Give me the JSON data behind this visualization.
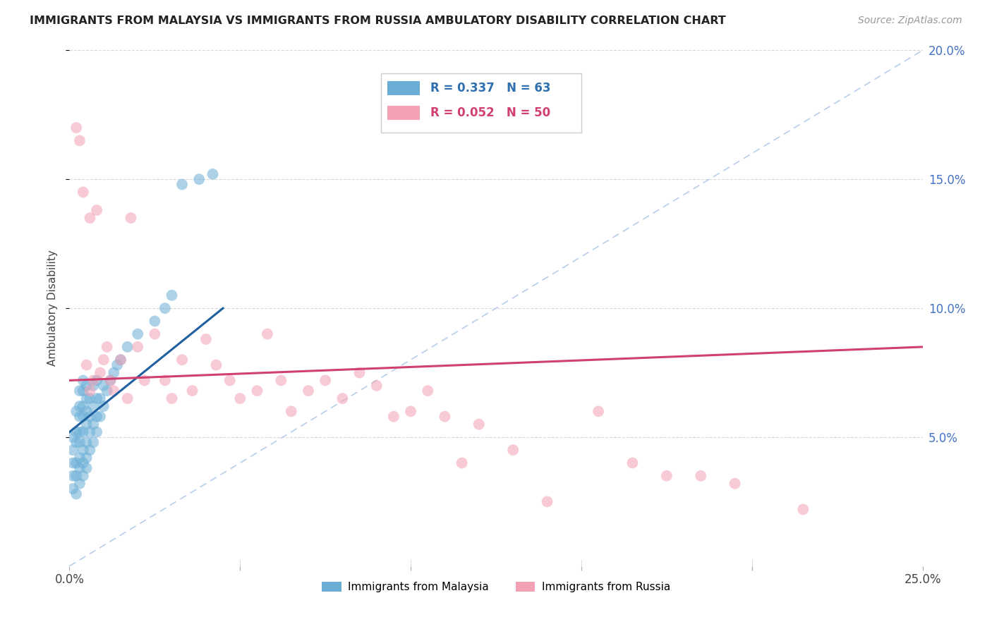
{
  "title": "IMMIGRANTS FROM MALAYSIA VS IMMIGRANTS FROM RUSSIA AMBULATORY DISABILITY CORRELATION CHART",
  "source": "Source: ZipAtlas.com",
  "ylabel": "Ambulatory Disability",
  "x_min": 0.0,
  "x_max": 0.25,
  "y_min": 0.0,
  "y_max": 0.2,
  "legend_label1": "Immigrants from Malaysia",
  "legend_label2": "Immigrants from Russia",
  "color_malaysia": "#6aaed6",
  "color_russia": "#f4a0b5",
  "color_trend_malaysia": "#2060a0",
  "color_trend_russia": "#d04070",
  "color_diag": "#b0c8e8",
  "background_color": "#ffffff",
  "grid_color": "#d8d8d8",
  "malaysia_x": [
    0.001,
    0.001,
    0.001,
    0.001,
    0.001,
    0.002,
    0.002,
    0.002,
    0.002,
    0.002,
    0.002,
    0.003,
    0.003,
    0.003,
    0.003,
    0.003,
    0.003,
    0.003,
    0.003,
    0.004,
    0.004,
    0.004,
    0.004,
    0.004,
    0.004,
    0.004,
    0.004,
    0.005,
    0.005,
    0.005,
    0.005,
    0.005,
    0.005,
    0.005,
    0.006,
    0.006,
    0.006,
    0.006,
    0.007,
    0.007,
    0.007,
    0.007,
    0.008,
    0.008,
    0.008,
    0.008,
    0.009,
    0.009,
    0.01,
    0.01,
    0.011,
    0.012,
    0.013,
    0.014,
    0.015,
    0.017,
    0.02,
    0.025,
    0.028,
    0.03,
    0.033,
    0.038,
    0.042
  ],
  "malaysia_y": [
    0.03,
    0.035,
    0.04,
    0.045,
    0.05,
    0.028,
    0.035,
    0.04,
    0.048,
    0.052,
    0.06,
    0.032,
    0.038,
    0.042,
    0.048,
    0.052,
    0.058,
    0.062,
    0.068,
    0.035,
    0.04,
    0.045,
    0.052,
    0.058,
    0.062,
    0.068,
    0.072,
    0.038,
    0.042,
    0.048,
    0.055,
    0.06,
    0.065,
    0.07,
    0.045,
    0.052,
    0.058,
    0.065,
    0.048,
    0.055,
    0.062,
    0.07,
    0.052,
    0.058,
    0.065,
    0.072,
    0.058,
    0.065,
    0.062,
    0.07,
    0.068,
    0.072,
    0.075,
    0.078,
    0.08,
    0.085,
    0.09,
    0.095,
    0.1,
    0.105,
    0.148,
    0.15,
    0.152
  ],
  "russia_x": [
    0.002,
    0.003,
    0.004,
    0.005,
    0.006,
    0.006,
    0.007,
    0.008,
    0.009,
    0.01,
    0.011,
    0.012,
    0.013,
    0.015,
    0.017,
    0.018,
    0.02,
    0.022,
    0.025,
    0.028,
    0.03,
    0.033,
    0.036,
    0.04,
    0.043,
    0.047,
    0.05,
    0.055,
    0.058,
    0.062,
    0.065,
    0.07,
    0.075,
    0.08,
    0.085,
    0.09,
    0.095,
    0.1,
    0.105,
    0.11,
    0.115,
    0.12,
    0.13,
    0.14,
    0.155,
    0.165,
    0.175,
    0.185,
    0.195,
    0.215
  ],
  "russia_y": [
    0.17,
    0.165,
    0.145,
    0.078,
    0.068,
    0.135,
    0.072,
    0.138,
    0.075,
    0.08,
    0.085,
    0.072,
    0.068,
    0.08,
    0.065,
    0.135,
    0.085,
    0.072,
    0.09,
    0.072,
    0.065,
    0.08,
    0.068,
    0.088,
    0.078,
    0.072,
    0.065,
    0.068,
    0.09,
    0.072,
    0.06,
    0.068,
    0.072,
    0.065,
    0.075,
    0.07,
    0.058,
    0.06,
    0.068,
    0.058,
    0.04,
    0.055,
    0.045,
    0.025,
    0.06,
    0.04,
    0.035,
    0.035,
    0.032,
    0.022
  ],
  "trend_malaysia_x0": 0.0,
  "trend_malaysia_x1": 0.045,
  "trend_malaysia_y0": 0.052,
  "trend_malaysia_y1": 0.1,
  "trend_russia_x0": 0.0,
  "trend_russia_x1": 0.25,
  "trend_russia_y0": 0.072,
  "trend_russia_y1": 0.085
}
